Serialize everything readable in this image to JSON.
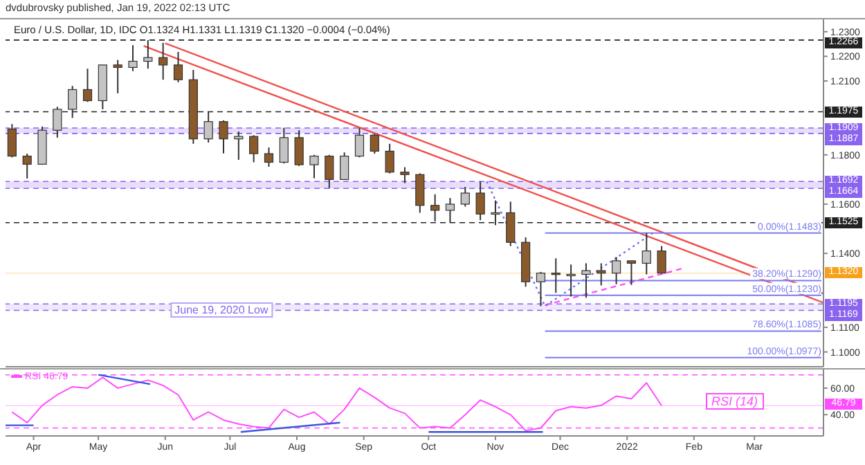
{
  "chart_data": [
    {
      "type": "candlestick",
      "title": "Euro / U.S. Dollar, 1D, IDC  O1.1324 H1.1331 L1.1319 C1.1320 −0.0004 (−0.04%)",
      "annotations": [
        "dvdubrovsky published, Jan 19, 2022 02:13 UTC",
        {
          "text": "June 19, 2020 Low",
          "x": "2021-06-27",
          "y": 1.1169
        }
      ],
      "x": [
        "2021-03-22",
        "2021-03-29",
        "2021-04-05",
        "2021-04-12",
        "2021-04-19",
        "2021-04-26",
        "2021-05-03",
        "2021-05-10",
        "2021-05-17",
        "2021-05-24",
        "2021-05-31",
        "2021-06-07",
        "2021-06-14",
        "2021-06-21",
        "2021-06-28",
        "2021-07-05",
        "2021-07-12",
        "2021-07-19",
        "2021-07-26",
        "2021-08-02",
        "2021-08-09",
        "2021-08-16",
        "2021-08-23",
        "2021-08-30",
        "2021-09-06",
        "2021-09-13",
        "2021-09-20",
        "2021-09-27",
        "2021-10-04",
        "2021-10-11",
        "2021-10-18",
        "2021-10-25",
        "2021-11-01",
        "2021-11-08",
        "2021-11-15",
        "2021-11-22",
        "2021-11-29",
        "2021-12-06",
        "2021-12-13",
        "2021-12-20",
        "2021-12-27",
        "2022-01-03",
        "2022-01-10",
        "2022-01-17"
      ],
      "ohlc": [
        [
          1.1905,
          1.1925,
          1.179,
          1.1795
        ],
        [
          1.1795,
          1.1805,
          1.1704,
          1.1762
        ],
        [
          1.1762,
          1.1915,
          1.176,
          1.19
        ],
        [
          1.19,
          1.1995,
          1.187,
          1.1985
        ],
        [
          1.1985,
          1.208,
          1.195,
          1.2065
        ],
        [
          1.2065,
          1.215,
          1.2015,
          1.202
        ],
        [
          1.202,
          1.2165,
          1.1985,
          1.2165
        ],
        [
          1.2165,
          1.2185,
          1.205,
          1.2155
        ],
        [
          1.2155,
          1.2245,
          1.214,
          1.218
        ],
        [
          1.218,
          1.2266,
          1.215,
          1.2195
        ],
        [
          1.2195,
          1.2255,
          1.2105,
          1.2165
        ],
        [
          1.2165,
          1.2218,
          1.2095,
          1.2105
        ],
        [
          1.2105,
          1.2145,
          1.1845,
          1.1865
        ],
        [
          1.1865,
          1.1975,
          1.185,
          1.1935
        ],
        [
          1.1935,
          1.194,
          1.1806,
          1.1865
        ],
        [
          1.1865,
          1.1895,
          1.178,
          1.1875
        ],
        [
          1.1875,
          1.188,
          1.177,
          1.1805
        ],
        [
          1.1805,
          1.183,
          1.1752,
          1.177
        ],
        [
          1.177,
          1.191,
          1.1765,
          1.187
        ],
        [
          1.187,
          1.19,
          1.1755,
          1.176
        ],
        [
          1.176,
          1.18,
          1.1705,
          1.1795
        ],
        [
          1.1795,
          1.18,
          1.1664,
          1.17
        ],
        [
          1.17,
          1.181,
          1.17,
          1.1795
        ],
        [
          1.1795,
          1.1909,
          1.179,
          1.188
        ],
        [
          1.188,
          1.1885,
          1.1805,
          1.1815
        ],
        [
          1.1815,
          1.1845,
          1.1725,
          1.173
        ],
        [
          1.173,
          1.175,
          1.1685,
          1.172
        ],
        [
          1.172,
          1.1725,
          1.1565,
          1.1595
        ],
        [
          1.1595,
          1.164,
          1.153,
          1.1575
        ],
        [
          1.1575,
          1.1625,
          1.1524,
          1.16
        ],
        [
          1.16,
          1.167,
          1.159,
          1.1645
        ],
        [
          1.1645,
          1.1692,
          1.1535,
          1.156
        ],
        [
          1.156,
          1.1615,
          1.1515,
          1.1565
        ],
        [
          1.1565,
          1.161,
          1.143,
          1.1445
        ],
        [
          1.1445,
          1.1465,
          1.1265,
          1.1285
        ],
        [
          1.1285,
          1.1325,
          1.1186,
          1.132
        ],
        [
          1.132,
          1.138,
          1.124,
          1.1315
        ],
        [
          1.1315,
          1.1355,
          1.1225,
          1.1315
        ],
        [
          1.1315,
          1.136,
          1.122,
          1.133
        ],
        [
          1.133,
          1.136,
          1.127,
          1.132
        ],
        [
          1.132,
          1.1385,
          1.1275,
          1.137
        ],
        [
          1.137,
          1.137,
          1.1272,
          1.136
        ],
        [
          1.136,
          1.1483,
          1.1315,
          1.141
        ],
        [
          1.141,
          1.143,
          1.1319,
          1.132
        ]
      ],
      "colors": [
        "#8b5a2b",
        "#8b5a2b",
        "#c4c4c4",
        "#c4c4c4",
        "#c4c4c4",
        "#8b5a2b",
        "#c4c4c4",
        "#8b5a2b",
        "#c4c4c4",
        "#c4c4c4",
        "#8b5a2b",
        "#8b5a2b",
        "#8b5a2b",
        "#c4c4c4",
        "#8b5a2b",
        "#c4c4c4",
        "#8b5a2b",
        "#8b5a2b",
        "#c4c4c4",
        "#8b5a2b",
        "#c4c4c4",
        "#8b5a2b",
        "#c4c4c4",
        "#c4c4c4",
        "#8b5a2b",
        "#8b5a2b",
        "#8b5a2b",
        "#8b5a2b",
        "#8b5a2b",
        "#c4c4c4",
        "#c4c4c4",
        "#8b5a2b",
        "#c4c4c4",
        "#8b5a2b",
        "#8b5a2b",
        "#c4c4c4",
        "#8b5a2b",
        "#c4c4c4",
        "#c4c4c4",
        "#8b5a2b",
        "#c4c4c4",
        "#8b5a2b",
        "#c4c4c4",
        "#8b5a2b"
      ],
      "series": [
        {
          "type": "line",
          "color": "#f0504a",
          "x": [
            "2021-05-22",
            "2022-04-02"
          ],
          "values": [
            1.2242,
            1.12
          ]
        },
        {
          "type": "line",
          "color": "#f0504a",
          "x": [
            "2021-06-01",
            "2022-04-02"
          ],
          "values": [
            1.2253,
            1.1237
          ]
        },
        {
          "type": "line",
          "color": "#ff4dff",
          "line_style": "dashed",
          "x": [
            "2021-11-24",
            "2022-01-28"
          ],
          "values": [
            1.119,
            1.1342
          ]
        },
        {
          "type": "line",
          "color": "#6f6ff0",
          "line_style": "dotted",
          "x": [
            "2021-10-28",
            "2021-11-24",
            "2022-01-13"
          ],
          "values": [
            1.1692,
            1.1186,
            1.1483
          ]
        },
        {
          "type": "line",
          "name": "0.00%(1.1483)",
          "color": "#7b7bf0",
          "x": [
            "2021-11-24",
            "2022-04-01"
          ],
          "values": [
            1.1483,
            1.1483
          ]
        },
        {
          "type": "line",
          "name": "38.20%(1.1290)",
          "color": "#7b7bf0",
          "x": [
            "2021-11-24",
            "2022-04-01"
          ],
          "values": [
            1.129,
            1.129
          ]
        },
        {
          "type": "line",
          "name": "50.00%(1.1230)",
          "color": "#7b7bf0",
          "x": [
            "2021-11-24",
            "2022-04-01"
          ],
          "values": [
            1.123,
            1.123
          ]
        },
        {
          "type": "line",
          "name": "78.60%(1.1085)",
          "color": "#7b7bf0",
          "x": [
            "2021-11-24",
            "2022-04-01"
          ],
          "values": [
            1.1085,
            1.1085
          ]
        },
        {
          "type": "line",
          "name": "100.00%(1.0977)",
          "color": "#7b7bf0",
          "x": [
            "2021-11-24",
            "2022-04-01"
          ],
          "values": [
            1.0977,
            1.0977
          ]
        }
      ],
      "bands": [
        {
          "axis": "y",
          "from": 1.1887,
          "to": 1.1909,
          "color": "#e8defc"
        },
        {
          "axis": "y",
          "from": 1.1664,
          "to": 1.1692,
          "color": "#e8defc"
        },
        {
          "axis": "y",
          "from": 1.1169,
          "to": 1.1195,
          "color": "#efe8fd"
        }
      ],
      "ref_lines": [
        {
          "axis": "y",
          "value": 1.2266,
          "label": "1.2266",
          "color": "#222222",
          "line_style": "dashed"
        },
        {
          "axis": "y",
          "value": 1.1975,
          "label": "1.1975",
          "color": "#222222",
          "line_style": "dashed"
        },
        {
          "axis": "y",
          "value": 1.1909,
          "label": "1.1909",
          "color": "#8a63ee",
          "line_style": "dashed"
        },
        {
          "axis": "y",
          "value": 1.1887,
          "label": "1.1887",
          "color": "#8a63ee",
          "line_style": "dashed"
        },
        {
          "axis": "y",
          "value": 1.1692,
          "label": "1.1692",
          "color": "#8a63ee",
          "line_style": "dashed"
        },
        {
          "axis": "y",
          "value": 1.1664,
          "label": "1.1664",
          "color": "#8a63ee",
          "line_style": "dashed"
        },
        {
          "axis": "y",
          "value": 1.1525,
          "label": "1.1525",
          "color": "#222222",
          "line_style": "dashed"
        },
        {
          "axis": "y",
          "value": 1.132,
          "label": "1.1320",
          "color": "#f7a11a"
        },
        {
          "axis": "y",
          "value": 1.1195,
          "label": "1.1195",
          "color": "#8a63ee",
          "line_style": "dashed"
        },
        {
          "axis": "y",
          "value": 1.1169,
          "label": "1.1169",
          "color": "#8a63ee",
          "line_style": "dashed"
        }
      ],
      "xlim": [
        "2021-03-19",
        "2022-04-02"
      ],
      "ylim": [
        1.094,
        1.235
      ],
      "yticks": [
        {
          "value": 1.1,
          "label": "1.1000"
        },
        {
          "value": 1.11,
          "label": "1.1100"
        },
        {
          "value": 1.14,
          "label": "1.1400"
        },
        {
          "value": 1.16,
          "label": "1.1600"
        },
        {
          "value": 1.18,
          "label": "1.1800"
        },
        {
          "value": 1.21,
          "label": "1.2100"
        },
        {
          "value": 1.22,
          "label": "1.2200"
        },
        {
          "value": 1.23,
          "label": "1.2300"
        }
      ],
      "tick_labels": "y",
      "legend": false
    },
    {
      "type": "line",
      "annotations": [
        "RSI (14)",
        "46.79"
      ],
      "legend": "top left",
      "x": [
        "2021-03-22",
        "2021-03-29",
        "2021-04-05",
        "2021-04-12",
        "2021-04-19",
        "2021-04-26",
        "2021-05-03",
        "2021-05-10",
        "2021-05-17",
        "2021-05-24",
        "2021-05-31",
        "2021-06-07",
        "2021-06-14",
        "2021-06-21",
        "2021-06-28",
        "2021-07-05",
        "2021-07-12",
        "2021-07-19",
        "2021-07-26",
        "2021-08-02",
        "2021-08-09",
        "2021-08-16",
        "2021-08-23",
        "2021-08-30",
        "2021-09-06",
        "2021-09-13",
        "2021-09-20",
        "2021-09-27",
        "2021-10-04",
        "2021-10-11",
        "2021-10-18",
        "2021-10-25",
        "2021-11-01",
        "2021-11-08",
        "2021-11-15",
        "2021-11-22",
        "2021-11-29",
        "2021-12-06",
        "2021-12-13",
        "2021-12-20",
        "2021-12-27",
        "2022-01-03",
        "2022-01-10",
        "2022-01-17"
      ],
      "series": [
        {
          "name": "RSI",
          "color": "#ff4dff",
          "values": [
            42,
            34,
            47,
            55,
            61,
            60,
            68,
            60,
            63,
            66,
            62,
            55,
            36,
            42,
            36,
            33,
            31,
            30,
            44,
            38,
            42,
            33,
            44,
            60,
            53,
            45,
            41,
            30,
            31,
            30,
            40,
            51,
            46,
            40,
            28,
            30,
            43,
            46,
            45,
            47,
            54,
            52,
            64,
            46.79
          ]
        },
        {
          "type": "line",
          "color": "#3a55e0",
          "x": [
            "2021-03-19",
            "2021-04-01"
          ],
          "values": [
            32,
            32
          ]
        },
        {
          "type": "line",
          "color": "#3a55e0",
          "x": [
            "2021-05-01",
            "2021-05-25"
          ],
          "values": [
            70,
            63
          ]
        },
        {
          "type": "line",
          "color": "#3a55e0",
          "x": [
            "2021-07-06",
            "2021-08-21"
          ],
          "values": [
            27,
            34
          ]
        },
        {
          "type": "line",
          "color": "#3a55e0",
          "x": [
            "2021-10-01",
            "2021-11-23"
          ],
          "values": [
            27,
            27
          ]
        }
      ],
      "ref_lines": [
        {
          "axis": "y",
          "value": 70,
          "color": "#ff4dff",
          "line_style": "dashed"
        },
        {
          "axis": "y",
          "value": 30,
          "color": "#ff4dff",
          "line_style": "dashed"
        },
        {
          "axis": "y",
          "value": 46.79,
          "label": "46.79",
          "color": "#ff4dff"
        }
      ],
      "xlim": [
        "2021-03-19",
        "2022-04-02"
      ],
      "ylim": [
        24,
        74
      ],
      "xticks": [
        {
          "value": "2021-04-01",
          "label": "Apr"
        },
        {
          "value": "2021-05-01",
          "label": "May"
        },
        {
          "value": "2021-06-01",
          "label": "Jun"
        },
        {
          "value": "2021-07-01",
          "label": "Jul"
        },
        {
          "value": "2021-08-01",
          "label": "Aug"
        },
        {
          "value": "2021-09-01",
          "label": "Sep"
        },
        {
          "value": "2021-10-01",
          "label": "Oct"
        },
        {
          "value": "2021-11-01",
          "label": "Nov"
        },
        {
          "value": "2021-12-01",
          "label": "Dec"
        },
        {
          "value": "2022-01-01",
          "label": "2022"
        },
        {
          "value": "2022-02-01",
          "label": "Feb"
        },
        {
          "value": "2022-03-01",
          "label": "Mar"
        }
      ],
      "yticks": [
        {
          "value": 60,
          "label": "60.00"
        },
        {
          "value": 40,
          "label": "40.00"
        }
      ]
    }
  ]
}
